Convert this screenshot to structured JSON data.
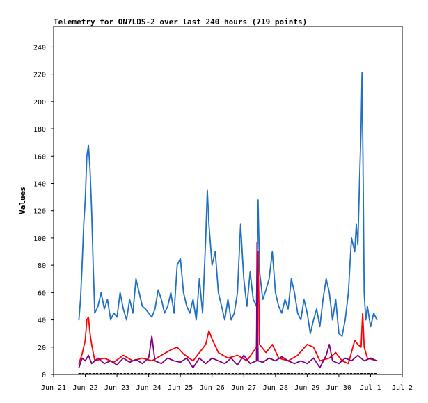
{
  "chart_data": {
    "type": "line",
    "title": "Telemetry for ON7LDS-2 over last 240 hours (719 points)",
    "xlabel": "",
    "ylabel": "Values",
    "grid": false,
    "legend": "none",
    "x_ticks": [
      "Jun 21",
      "Jun 22",
      "Jun 23",
      "Jun 24",
      "Jun 25",
      "Jun 26",
      "Jun 27",
      "Jun 28",
      "Jun 29",
      "Jun 30",
      "Jul 1",
      "Jul 2"
    ],
    "y_ticks": [
      0,
      20,
      40,
      60,
      80,
      100,
      120,
      140,
      160,
      180,
      200,
      220,
      240
    ],
    "xlim": [
      0,
      11
    ],
    "ylim": [
      0,
      255
    ],
    "colors": {
      "series_blue": "#1f6fc4",
      "series_red": "#ff0000",
      "series_purple": "#800080",
      "series_black": "#000000"
    },
    "series": [
      {
        "color": "#1f6fc4",
        "points": [
          [
            0.8,
            40
          ],
          [
            0.85,
            55
          ],
          [
            0.9,
            80
          ],
          [
            0.95,
            110
          ],
          [
            1.0,
            128
          ],
          [
            1.05,
            160
          ],
          [
            1.1,
            168
          ],
          [
            1.15,
            150
          ],
          [
            1.2,
            120
          ],
          [
            1.25,
            80
          ],
          [
            1.3,
            45
          ],
          [
            1.4,
            50
          ],
          [
            1.5,
            60
          ],
          [
            1.6,
            48
          ],
          [
            1.7,
            55
          ],
          [
            1.8,
            40
          ],
          [
            1.9,
            45
          ],
          [
            2.0,
            42
          ],
          [
            2.1,
            60
          ],
          [
            2.2,
            48
          ],
          [
            2.3,
            40
          ],
          [
            2.4,
            55
          ],
          [
            2.5,
            45
          ],
          [
            2.6,
            70
          ],
          [
            2.7,
            60
          ],
          [
            2.8,
            50
          ],
          [
            2.9,
            48
          ],
          [
            3.0,
            45
          ],
          [
            3.1,
            42
          ],
          [
            3.2,
            48
          ],
          [
            3.3,
            62
          ],
          [
            3.4,
            55
          ],
          [
            3.5,
            45
          ],
          [
            3.6,
            50
          ],
          [
            3.7,
            60
          ],
          [
            3.8,
            45
          ],
          [
            3.9,
            80
          ],
          [
            4.0,
            85
          ],
          [
            4.1,
            60
          ],
          [
            4.2,
            50
          ],
          [
            4.3,
            45
          ],
          [
            4.4,
            55
          ],
          [
            4.5,
            40
          ],
          [
            4.6,
            70
          ],
          [
            4.7,
            45
          ],
          [
            4.8,
            100
          ],
          [
            4.85,
            135
          ],
          [
            4.9,
            110
          ],
          [
            5.0,
            80
          ],
          [
            5.1,
            90
          ],
          [
            5.2,
            60
          ],
          [
            5.3,
            50
          ],
          [
            5.4,
            40
          ],
          [
            5.5,
            55
          ],
          [
            5.6,
            40
          ],
          [
            5.7,
            45
          ],
          [
            5.8,
            60
          ],
          [
            5.9,
            110
          ],
          [
            6.0,
            70
          ],
          [
            6.1,
            50
          ],
          [
            6.2,
            75
          ],
          [
            6.3,
            55
          ],
          [
            6.4,
            50
          ],
          [
            6.45,
            128
          ],
          [
            6.5,
            75
          ],
          [
            6.6,
            55
          ],
          [
            6.7,
            62
          ],
          [
            6.8,
            70
          ],
          [
            6.9,
            90
          ],
          [
            7.0,
            60
          ],
          [
            7.1,
            50
          ],
          [
            7.2,
            45
          ],
          [
            7.3,
            55
          ],
          [
            7.4,
            48
          ],
          [
            7.5,
            70
          ],
          [
            7.6,
            60
          ],
          [
            7.7,
            45
          ],
          [
            7.8,
            40
          ],
          [
            7.9,
            55
          ],
          [
            8.0,
            45
          ],
          [
            8.1,
            30
          ],
          [
            8.2,
            40
          ],
          [
            8.3,
            48
          ],
          [
            8.4,
            35
          ],
          [
            8.5,
            55
          ],
          [
            8.6,
            70
          ],
          [
            8.7,
            60
          ],
          [
            8.8,
            40
          ],
          [
            8.9,
            55
          ],
          [
            9.0,
            30
          ],
          [
            9.1,
            28
          ],
          [
            9.2,
            40
          ],
          [
            9.3,
            60
          ],
          [
            9.35,
            80
          ],
          [
            9.4,
            100
          ],
          [
            9.5,
            90
          ],
          [
            9.55,
            110
          ],
          [
            9.6,
            95
          ],
          [
            9.65,
            140
          ],
          [
            9.7,
            180
          ],
          [
            9.73,
            221
          ],
          [
            9.76,
            160
          ],
          [
            9.8,
            60
          ],
          [
            9.85,
            40
          ],
          [
            9.9,
            50
          ],
          [
            10.0,
            35
          ],
          [
            10.1,
            45
          ],
          [
            10.2,
            40
          ]
        ]
      },
      {
        "color": "#ff0000",
        "points": [
          [
            0.8,
            8
          ],
          [
            0.9,
            15
          ],
          [
            1.0,
            25
          ],
          [
            1.05,
            40
          ],
          [
            1.1,
            42
          ],
          [
            1.15,
            30
          ],
          [
            1.2,
            22
          ],
          [
            1.3,
            10
          ],
          [
            1.6,
            12
          ],
          [
            1.9,
            9
          ],
          [
            2.2,
            14
          ],
          [
            2.5,
            10
          ],
          [
            2.8,
            12
          ],
          [
            3.1,
            10
          ],
          [
            3.4,
            14
          ],
          [
            3.7,
            18
          ],
          [
            3.9,
            20
          ],
          [
            4.1,
            15
          ],
          [
            4.4,
            10
          ],
          [
            4.8,
            22
          ],
          [
            4.9,
            32
          ],
          [
            5.0,
            26
          ],
          [
            5.2,
            16
          ],
          [
            5.5,
            12
          ],
          [
            5.8,
            14
          ],
          [
            6.1,
            10
          ],
          [
            6.4,
            20
          ],
          [
            6.45,
            90
          ],
          [
            6.5,
            22
          ],
          [
            6.7,
            16
          ],
          [
            6.9,
            22
          ],
          [
            7.1,
            12
          ],
          [
            7.4,
            10
          ],
          [
            7.7,
            14
          ],
          [
            8.0,
            22
          ],
          [
            8.2,
            20
          ],
          [
            8.4,
            10
          ],
          [
            8.7,
            12
          ],
          [
            8.9,
            16
          ],
          [
            9.1,
            10
          ],
          [
            9.3,
            8
          ],
          [
            9.5,
            25
          ],
          [
            9.6,
            22
          ],
          [
            9.7,
            20
          ],
          [
            9.75,
            45
          ],
          [
            9.8,
            20
          ],
          [
            9.9,
            12
          ],
          [
            10.2,
            10
          ]
        ]
      },
      {
        "color": "#800080",
        "points": [
          [
            0.8,
            5
          ],
          [
            0.9,
            12
          ],
          [
            1.0,
            10
          ],
          [
            1.1,
            14
          ],
          [
            1.2,
            8
          ],
          [
            1.4,
            12
          ],
          [
            1.6,
            8
          ],
          [
            1.8,
            10
          ],
          [
            2.0,
            7
          ],
          [
            2.2,
            12
          ],
          [
            2.4,
            9
          ],
          [
            2.6,
            11
          ],
          [
            2.8,
            8
          ],
          [
            3.0,
            12
          ],
          [
            3.1,
            28
          ],
          [
            3.2,
            10
          ],
          [
            3.4,
            8
          ],
          [
            3.6,
            12
          ],
          [
            3.8,
            10
          ],
          [
            4.0,
            9
          ],
          [
            4.2,
            12
          ],
          [
            4.4,
            5
          ],
          [
            4.6,
            12
          ],
          [
            4.8,
            8
          ],
          [
            5.0,
            12
          ],
          [
            5.2,
            10
          ],
          [
            5.4,
            8
          ],
          [
            5.6,
            12
          ],
          [
            5.8,
            7
          ],
          [
            6.0,
            14
          ],
          [
            6.2,
            8
          ],
          [
            6.4,
            10
          ],
          [
            6.42,
            97
          ],
          [
            6.45,
            10
          ],
          [
            6.6,
            9
          ],
          [
            6.8,
            12
          ],
          [
            7.0,
            10
          ],
          [
            7.2,
            13
          ],
          [
            7.4,
            10
          ],
          [
            7.6,
            8
          ],
          [
            7.8,
            10
          ],
          [
            8.0,
            8
          ],
          [
            8.2,
            12
          ],
          [
            8.4,
            5
          ],
          [
            8.6,
            14
          ],
          [
            8.7,
            22
          ],
          [
            8.8,
            10
          ],
          [
            9.0,
            8
          ],
          [
            9.2,
            12
          ],
          [
            9.4,
            10
          ],
          [
            9.6,
            14
          ],
          [
            9.8,
            10
          ],
          [
            10.0,
            12
          ],
          [
            10.2,
            10
          ]
        ]
      },
      {
        "color": "#000000",
        "points": [
          [
            0.8,
            0.5
          ],
          [
            10.2,
            0.5
          ]
        ]
      }
    ]
  }
}
